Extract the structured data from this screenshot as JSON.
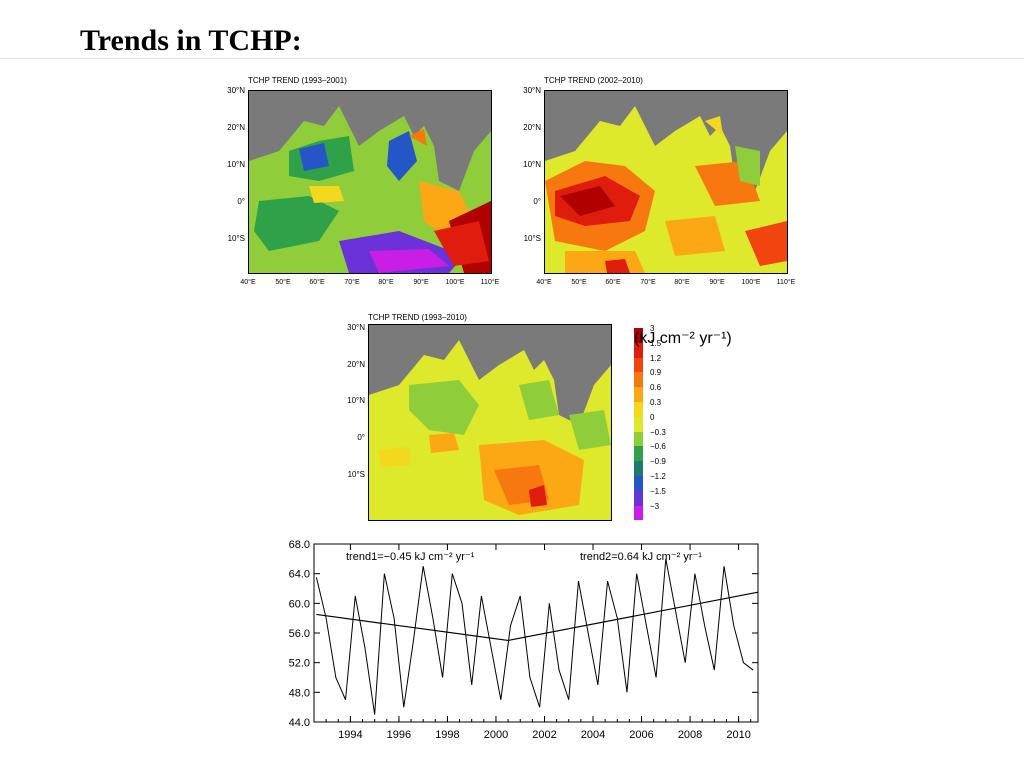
{
  "slide": {
    "title": "Trends in TCHP:"
  },
  "maps": [
    {
      "title": "TCHP TREND (1993–2001)"
    },
    {
      "title": "TCHP TREND (2002–2010)"
    },
    {
      "title": "TCHP TREND (1993–2010)"
    }
  ],
  "map_axes": {
    "lat_labels": [
      "30°N",
      "20°N",
      "10°N",
      "0°",
      "10°S"
    ],
    "lon_labels": [
      "40°E",
      "50°E",
      "60°E",
      "70°E",
      "80°E",
      "90°E",
      "100°E",
      "110°E"
    ]
  },
  "colorbar": {
    "labels": [
      "3",
      "1.5",
      "1.2",
      "0.9",
      "0.6",
      "0.3",
      "0",
      "−0.3",
      "−0.6",
      "−0.9",
      "−1.2",
      "−1.5",
      "−3"
    ],
    "colors": [
      "#b00000",
      "#e01c0c",
      "#f2440e",
      "#f7780f",
      "#fba814",
      "#f3d81e",
      "#dde92a",
      "#8fcd3a",
      "#2fa148",
      "#1e7a70",
      "#2456c8",
      "#6a32d8",
      "#c81ee6"
    ],
    "unit": "(kJ cm⁻² yr⁻¹)"
  },
  "chart_data": {
    "type": "line",
    "x_range": [
      1992.5,
      2010.8
    ],
    "ylim": [
      44,
      68
    ],
    "yticks": [
      "44.0",
      "48.0",
      "52.0",
      "56.0",
      "60.0",
      "64.0",
      "68.0"
    ],
    "xticks": [
      "1994",
      "1996",
      "1998",
      "2000",
      "2002",
      "2004",
      "2006",
      "2008",
      "2010"
    ],
    "annotations": [
      "trend1=−0.45 kJ cm⁻² yr⁻¹",
      "trend2=0.64 kJ cm⁻² yr⁻¹"
    ],
    "series": [
      {
        "x": [
          1992.6,
          1993.0,
          1993.4,
          1993.8,
          1994.2,
          1994.6,
          1995.0,
          1995.4,
          1995.8,
          1996.2,
          1996.6,
          1997.0,
          1997.4,
          1997.8,
          1998.2,
          1998.6,
          1999.0,
          1999.4,
          1999.8,
          2000.2,
          2000.6,
          2001.0,
          2001.4,
          2001.8,
          2002.2,
          2002.6,
          2003.0,
          2003.4,
          2003.8,
          2004.2,
          2004.6,
          2005.0,
          2005.4,
          2005.8,
          2006.2,
          2006.6,
          2007.0,
          2007.4,
          2007.8,
          2008.2,
          2008.6,
          2009.0,
          2009.4,
          2009.8,
          2010.2,
          2010.6
        ],
        "y": [
          63.5,
          58,
          50,
          47,
          61,
          54,
          45,
          64,
          58,
          46,
          55,
          65,
          58,
          50,
          64,
          60,
          49,
          61,
          54,
          47,
          57,
          61,
          50,
          46,
          60,
          51,
          47,
          63,
          56,
          49,
          63,
          58,
          48,
          64,
          57,
          50,
          66,
          59,
          52,
          64,
          57,
          51,
          65,
          57,
          52,
          51
        ]
      },
      {
        "x": [
          1992.6,
          2000.5
        ],
        "y": [
          58.5,
          55.0
        ]
      },
      {
        "x": [
          2000.5,
          2010.8
        ],
        "y": [
          55.0,
          61.5
        ]
      }
    ]
  }
}
